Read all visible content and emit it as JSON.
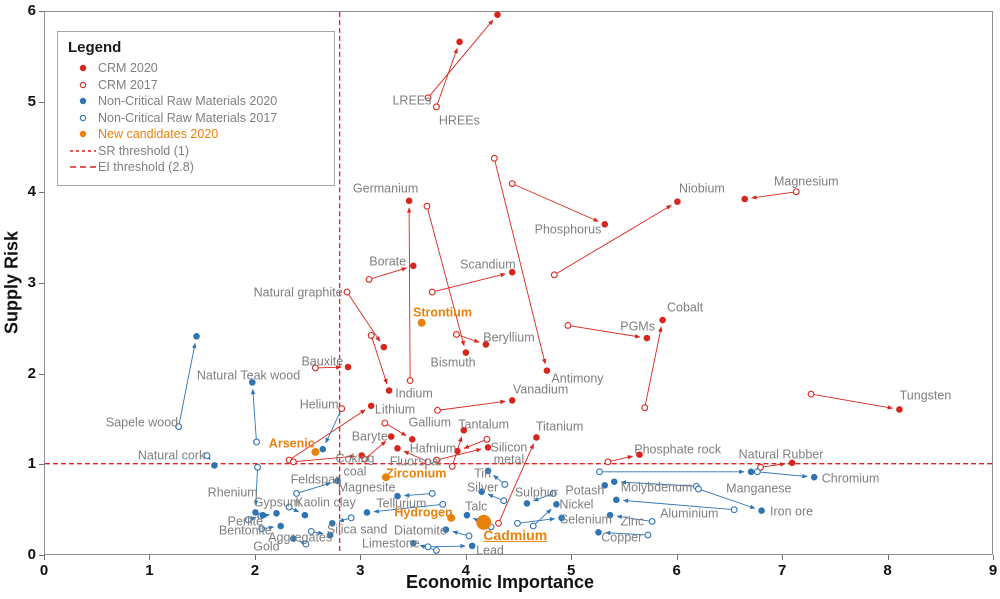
{
  "axes": {
    "x_label": "Economic Importance",
    "y_label": "Supply Risk",
    "x_ticks": [
      "0",
      "1",
      "2",
      "3",
      "4",
      "5",
      "6",
      "7",
      "8",
      "9"
    ],
    "y_ticks": [
      "0",
      "1",
      "2",
      "3",
      "4",
      "5",
      "6"
    ]
  },
  "legend": {
    "title": "Legend",
    "items": [
      {
        "label": "CRM 2020",
        "marker": "dot-filled",
        "color": "#D7261D",
        "text_class": ""
      },
      {
        "label": "CRM 2017",
        "marker": "dot-open",
        "color": "#D7261D",
        "text_class": ""
      },
      {
        "label": "Non-Critical Raw Materials 2020",
        "marker": "dot-filled",
        "color": "#2E74B5",
        "text_class": ""
      },
      {
        "label": "Non-Critical Raw Materials 2017",
        "marker": "dot-open",
        "color": "#2E74B5",
        "text_class": ""
      },
      {
        "label": "New candidates 2020",
        "marker": "dot-filled",
        "color": "#E8820C",
        "text_class": "orange"
      },
      {
        "label": "SR threshold (1)",
        "marker": "dash-short",
        "color": "#E02020",
        "text_class": ""
      },
      {
        "label": "EI threshold (2.8)",
        "marker": "dash-long",
        "color": "#E02020",
        "text_class": ""
      }
    ]
  },
  "colors": {
    "crm": "#D7261D",
    "non_critical": "#2E74B5",
    "new_candidate": "#E8820C",
    "threshold": "#E02020",
    "label_gray": "#7f7f7f"
  },
  "chart_data": {
    "type": "scatter",
    "xlabel": "Economic Importance",
    "ylabel": "Supply Risk",
    "xlim": [
      0,
      9
    ],
    "ylim": [
      0,
      6
    ],
    "grid": false,
    "thresholds": {
      "sr_threshold": 1.0,
      "ei_threshold": 2.8
    },
    "materials": [
      {
        "name": "LREEs",
        "category": "crm",
        "ei_2017": 3.64,
        "sr_2017": 5.05,
        "ei_2020": 4.3,
        "sr_2020": 5.97,
        "label_pos": [
          3.48,
          5.02
        ]
      },
      {
        "name": "HREEs",
        "category": "crm",
        "ei_2017": 3.72,
        "sr_2017": 4.95,
        "ei_2020": 3.94,
        "sr_2020": 5.67,
        "label_pos": [
          3.93,
          4.8
        ]
      },
      {
        "name": "Germanium",
        "category": "crm",
        "ei_2017": 3.47,
        "sr_2017": 1.92,
        "ei_2020": 3.46,
        "sr_2020": 3.91,
        "label_pos": [
          3.23,
          4.05
        ]
      },
      {
        "name": "Borate",
        "category": "crm",
        "ei_2017": 3.08,
        "sr_2017": 3.04,
        "ei_2020": 3.5,
        "sr_2020": 3.19,
        "label_pos": [
          3.25,
          3.24
        ]
      },
      {
        "name": "Scandium",
        "category": "crm",
        "ei_2017": 3.68,
        "sr_2017": 2.9,
        "ei_2020": 4.44,
        "sr_2020": 3.12,
        "label_pos": [
          4.2,
          3.21
        ]
      },
      {
        "name": "Natural graphite",
        "category": "crm",
        "ei_2017": 2.87,
        "sr_2017": 2.9,
        "ei_2020": 3.22,
        "sr_2020": 2.29,
        "label_pos": [
          2.4,
          2.9
        ]
      },
      {
        "name": "Phosphorus",
        "category": "crm",
        "ei_2017": 4.44,
        "sr_2017": 4.1,
        "ei_2020": 5.32,
        "sr_2020": 3.65,
        "label_pos": [
          4.96,
          3.6
        ]
      },
      {
        "name": "Niobium",
        "category": "crm",
        "ei_2017": 4.84,
        "sr_2017": 3.09,
        "ei_2020": 6.01,
        "sr_2020": 3.9,
        "label_pos": [
          6.23,
          4.05
        ]
      },
      {
        "name": "Magnesium",
        "category": "crm",
        "ei_2017": 7.14,
        "sr_2017": 4.01,
        "ei_2020": 6.65,
        "sr_2020": 3.93,
        "label_pos": [
          7.22,
          4.13
        ]
      },
      {
        "name": "Bismuth",
        "category": "crm",
        "ei_2017": 3.63,
        "sr_2017": 3.85,
        "ei_2020": 4.0,
        "sr_2020": 2.23,
        "label_pos": [
          3.87,
          2.13
        ]
      },
      {
        "name": "Beryllium",
        "category": "crm",
        "ei_2017": 3.91,
        "sr_2017": 2.43,
        "ei_2020": 4.19,
        "sr_2020": 2.32,
        "label_pos": [
          4.4,
          2.4
        ]
      },
      {
        "name": "Antimony",
        "category": "crm",
        "ei_2017": 4.27,
        "sr_2017": 4.38,
        "ei_2020": 4.77,
        "sr_2020": 2.03,
        "label_pos": [
          5.05,
          1.95
        ]
      },
      {
        "name": "Bauxite",
        "category": "crm",
        "ei_2017": 2.57,
        "sr_2017": 2.06,
        "ei_2020": 2.88,
        "sr_2020": 2.07,
        "label_pos": [
          2.63,
          2.14
        ]
      },
      {
        "name": "Indium",
        "category": "crm",
        "ei_2017": 3.1,
        "sr_2017": 2.42,
        "ei_2020": 3.27,
        "sr_2020": 1.81,
        "label_pos": [
          3.5,
          1.79
        ]
      },
      {
        "name": "Cobalt",
        "category": "crm",
        "ei_2017": 5.7,
        "sr_2017": 1.62,
        "ei_2020": 5.87,
        "sr_2020": 2.59,
        "label_pos": [
          6.07,
          2.74
        ]
      },
      {
        "name": "PGMs",
        "category": "crm",
        "ei_2017": 4.97,
        "sr_2017": 2.53,
        "ei_2020": 5.72,
        "sr_2020": 2.39,
        "label_pos": [
          5.62,
          2.53
        ]
      },
      {
        "name": "Vanadium",
        "category": "crm",
        "ei_2017": 3.73,
        "sr_2017": 1.59,
        "ei_2020": 4.44,
        "sr_2020": 1.7,
        "label_pos": [
          4.7,
          1.83
        ]
      },
      {
        "name": "Lithium",
        "category": "crm",
        "ei_2017": 2.32,
        "sr_2017": 1.04,
        "ei_2020": 3.1,
        "sr_2020": 1.64,
        "label_pos": [
          3.32,
          1.61
        ]
      },
      {
        "name": "Titanium",
        "category": "crm",
        "ei_2017": 4.31,
        "sr_2017": 0.34,
        "ei_2020": 4.67,
        "sr_2020": 1.29,
        "label_pos": [
          4.88,
          1.42
        ]
      },
      {
        "name": "Tungsten",
        "category": "crm",
        "ei_2017": 7.28,
        "sr_2017": 1.77,
        "ei_2020": 8.12,
        "sr_2020": 1.6,
        "label_pos": [
          8.35,
          1.77
        ]
      },
      {
        "name": "Tantalum",
        "category": "crm",
        "ei_2017": 3.87,
        "sr_2017": 0.97,
        "ei_2020": 3.98,
        "sr_2020": 1.37,
        "label_pos": [
          4.16,
          1.45
        ]
      },
      {
        "name": "Gallium",
        "category": "crm",
        "ei_2017": 3.23,
        "sr_2017": 1.45,
        "ei_2020": 3.49,
        "sr_2020": 1.27,
        "label_pos": [
          3.65,
          1.47
        ]
      },
      {
        "name": "Hafnium",
        "category": "crm",
        "ei_2017": 4.2,
        "sr_2017": 1.27,
        "ei_2020": 3.92,
        "sr_2020": 1.14,
        "label_pos": [
          3.68,
          1.18
        ]
      },
      {
        "name": "Silicon metal",
        "category": "crm",
        "label": "Silicon\nmetal",
        "ei_2017": 3.72,
        "sr_2017": 1.04,
        "ei_2020": 4.21,
        "sr_2020": 1.18,
        "label_pos": [
          4.4,
          1.13
        ]
      },
      {
        "name": "Fluorspar",
        "category": "crm",
        "ei_2017": 3.64,
        "sr_2017": 1.02,
        "ei_2020": 3.35,
        "sr_2020": 1.17,
        "label_pos": [
          3.52,
          1.04
        ]
      },
      {
        "name": "Baryte",
        "category": "crm",
        "ei_2017": 3.04,
        "sr_2017": 1.05,
        "ei_2020": 3.29,
        "sr_2020": 1.3,
        "label_pos": [
          3.08,
          1.31
        ]
      },
      {
        "name": "Coking coal",
        "category": "crm",
        "label": "Coking\ncoal",
        "ei_2017": 2.36,
        "sr_2017": 1.02,
        "ei_2020": 3.01,
        "sr_2020": 1.09,
        "label_pos": [
          2.94,
          1.0
        ]
      },
      {
        "name": "Phosphate rock",
        "category": "crm",
        "ei_2017": 5.35,
        "sr_2017": 1.02,
        "ei_2020": 5.65,
        "sr_2020": 1.1,
        "label_pos": [
          6.0,
          1.17
        ]
      },
      {
        "name": "Natural Rubber",
        "category": "crm",
        "ei_2017": 6.8,
        "sr_2017": 0.96,
        "ei_2020": 7.1,
        "sr_2020": 1.01,
        "label_pos": [
          6.98,
          1.11
        ]
      },
      {
        "name": "Helium",
        "category": "mixed",
        "ei_2017": 2.82,
        "sr_2017": 1.61,
        "ei_2020": 2.64,
        "sr_2020": 1.16,
        "label_pos": [
          2.6,
          1.66
        ]
      },
      {
        "name": "Sapele wood",
        "category": "non",
        "ei_2017": 1.27,
        "sr_2017": 1.41,
        "ei_2020": 1.44,
        "sr_2020": 2.41,
        "label_pos": [
          0.92,
          1.47
        ]
      },
      {
        "name": "Natural cork",
        "category": "non",
        "ei_2017": 1.54,
        "sr_2017": 1.09,
        "ei_2020": 1.61,
        "sr_2020": 0.98,
        "label_pos": [
          1.2,
          1.1
        ]
      },
      {
        "name": "Natural Teak wood",
        "category": "non",
        "ei_2017": 2.01,
        "sr_2017": 1.24,
        "ei_2020": 1.97,
        "sr_2020": 1.9,
        "label_pos": [
          1.93,
          1.98
        ]
      },
      {
        "name": "Rhenium",
        "category": "non",
        "ei_2017": 2.02,
        "sr_2017": 0.96,
        "ei_2020": 2.0,
        "sr_2020": 0.46,
        "label_pos": [
          1.78,
          0.7
        ]
      },
      {
        "name": "Tin",
        "category": "non",
        "ei_2017": 4.37,
        "sr_2017": 0.77,
        "ei_2020": 4.21,
        "sr_2020": 0.92,
        "label_pos": [
          4.15,
          0.9
        ]
      },
      {
        "name": "Silver",
        "category": "non",
        "ei_2017": 4.36,
        "sr_2017": 0.59,
        "ei_2020": 4.15,
        "sr_2020": 0.69,
        "label_pos": [
          4.15,
          0.75
        ]
      },
      {
        "name": "Sulphur",
        "category": "non",
        "ei_2017": 4.83,
        "sr_2017": 0.67,
        "ei_2020": 4.58,
        "sr_2020": 0.56,
        "label_pos": [
          4.66,
          0.69
        ]
      },
      {
        "name": "Potash",
        "category": "non",
        "ei_2017": null,
        "sr_2017": null,
        "ei_2020": 5.32,
        "sr_2020": 0.76,
        "label_pos": [
          5.12,
          0.72
        ]
      },
      {
        "name": "Molybdenum",
        "category": "non",
        "ei_2017": 6.19,
        "sr_2017": 0.75,
        "ei_2020": 5.41,
        "sr_2020": 0.8,
        "label_pos": [
          5.8,
          0.75
        ]
      },
      {
        "name": "Manganese",
        "category": "non",
        "ei_2017": 5.27,
        "sr_2017": 0.91,
        "ei_2020": 6.71,
        "sr_2020": 0.91,
        "label_pos": [
          6.77,
          0.74
        ]
      },
      {
        "name": "Chromium",
        "category": "non",
        "ei_2017": 6.77,
        "sr_2017": 0.91,
        "ei_2020": 7.31,
        "sr_2020": 0.85,
        "label_pos": [
          7.64,
          0.85
        ]
      },
      {
        "name": "Nickel",
        "category": "non",
        "ei_2017": 4.64,
        "sr_2017": 0.31,
        "ei_2020": 4.86,
        "sr_2020": 0.55,
        "label_pos": [
          5.04,
          0.56
        ]
      },
      {
        "name": "Selenium",
        "category": "non",
        "ei_2017": 4.49,
        "sr_2017": 0.34,
        "ei_2020": 4.91,
        "sr_2020": 0.4,
        "label_pos": [
          5.13,
          0.4
        ]
      },
      {
        "name": "Zinc",
        "category": "non",
        "ei_2017": 5.77,
        "sr_2017": 0.36,
        "ei_2020": 5.37,
        "sr_2020": 0.43,
        "label_pos": [
          5.57,
          0.38
        ]
      },
      {
        "name": "Copper",
        "category": "non",
        "ei_2017": 5.73,
        "sr_2017": 0.21,
        "ei_2020": 5.26,
        "sr_2020": 0.24,
        "label_pos": [
          5.47,
          0.2
        ]
      },
      {
        "name": "Iron ore",
        "category": "non",
        "ei_2017": 6.21,
        "sr_2017": 0.72,
        "ei_2020": 6.81,
        "sr_2020": 0.48,
        "label_pos": [
          7.08,
          0.48
        ]
      },
      {
        "name": "Aluminium",
        "category": "non",
        "ei_2017": 6.55,
        "sr_2017": 0.49,
        "ei_2020": 5.43,
        "sr_2020": 0.6,
        "label_pos": [
          6.11,
          0.46
        ]
      },
      {
        "name": "Lead",
        "category": "non",
        "ei_2017": 3.64,
        "sr_2017": 0.08,
        "ei_2020": 4.06,
        "sr_2020": 0.09,
        "label_pos": [
          4.22,
          0.05
        ]
      },
      {
        "name": "Talc",
        "category": "non",
        "ei_2017": 4.24,
        "sr_2017": 0.3,
        "ei_2020": 4.01,
        "sr_2020": 0.43,
        "label_pos": [
          4.09,
          0.54
        ]
      },
      {
        "name": "Limestone",
        "category": "non",
        "ei_2017": 3.72,
        "sr_2017": 0.04,
        "ei_2020": 3.5,
        "sr_2020": 0.12,
        "label_pos": [
          3.28,
          0.13
        ]
      },
      {
        "name": "Diatomite",
        "category": "non",
        "ei_2017": 4.03,
        "sr_2017": 0.2,
        "ei_2020": 3.81,
        "sr_2020": 0.27,
        "label_pos": [
          3.56,
          0.28
        ]
      },
      {
        "name": "Magnesite",
        "category": "non",
        "ei_2017": 3.68,
        "sr_2017": 0.67,
        "ei_2020": 3.35,
        "sr_2020": 0.64,
        "label_pos": [
          3.05,
          0.75
        ]
      },
      {
        "name": "Tellurium",
        "category": "non",
        "ei_2017": 3.78,
        "sr_2017": 0.55,
        "ei_2020": 3.06,
        "sr_2020": 0.46,
        "label_pos": [
          3.38,
          0.57
        ]
      },
      {
        "name": "Feldspar",
        "category": "non",
        "ei_2017": 2.39,
        "sr_2017": 0.67,
        "ei_2020": 2.78,
        "sr_2020": 0.81,
        "label_pos": [
          2.56,
          0.84
        ]
      },
      {
        "name": "Gypsum",
        "category": "non",
        "ei_2017": 2.05,
        "sr_2017": 0.42,
        "ei_2020": 2.2,
        "sr_2020": 0.45,
        "label_pos": [
          2.2,
          0.58
        ]
      },
      {
        "name": "Kaolin clay",
        "category": "non",
        "ei_2017": 2.32,
        "sr_2017": 0.52,
        "ei_2020": 2.47,
        "sr_2020": 0.43,
        "label_pos": [
          2.66,
          0.58
        ]
      },
      {
        "name": "Perlite",
        "category": "non",
        "ei_2017": 1.93,
        "sr_2017": 0.38,
        "ei_2020": 2.07,
        "sr_2020": 0.43,
        "label_pos": [
          1.9,
          0.38
        ]
      },
      {
        "name": "Bentonite",
        "category": "non",
        "ei_2017": 2.06,
        "sr_2017": 0.28,
        "ei_2020": 2.24,
        "sr_2020": 0.31,
        "label_pos": [
          1.9,
          0.28
        ]
      },
      {
        "name": "Aggregates",
        "category": "non",
        "ei_2017": 2.53,
        "sr_2017": 0.25,
        "ei_2020": 2.71,
        "sr_2020": 0.21,
        "label_pos": [
          2.42,
          0.2
        ]
      },
      {
        "name": "Gold",
        "category": "non",
        "ei_2017": 2.48,
        "sr_2017": 0.11,
        "ei_2020": 2.36,
        "sr_2020": 0.17,
        "label_pos": [
          2.1,
          0.1
        ]
      },
      {
        "name": "Silica sand",
        "category": "non",
        "ei_2017": 2.91,
        "sr_2017": 0.4,
        "ei_2020": 2.73,
        "sr_2020": 0.34,
        "label_pos": [
          2.96,
          0.29
        ]
      },
      {
        "name": "Strontium",
        "category": "new",
        "ei_2017": null,
        "sr_2017": null,
        "ei_2020": 3.58,
        "sr_2020": 2.56,
        "label_pos": [
          3.77,
          2.68
        ]
      },
      {
        "name": "Arsenic",
        "category": "new",
        "ei_2017": null,
        "sr_2017": null,
        "ei_2020": 2.57,
        "sr_2020": 1.13,
        "label_pos": [
          2.34,
          1.24
        ]
      },
      {
        "name": "Zirconium",
        "category": "new",
        "ei_2017": null,
        "sr_2017": null,
        "ei_2020": 3.24,
        "sr_2020": 0.85,
        "label_pos": [
          3.52,
          0.9
        ]
      },
      {
        "name": "Hydrogen",
        "category": "new",
        "ei_2017": null,
        "sr_2017": null,
        "ei_2020": 3.86,
        "sr_2020": 0.4,
        "label_pos": [
          3.59,
          0.47
        ]
      },
      {
        "name": "Cadmium",
        "category": "new",
        "big": true,
        "emph": true,
        "ei_2017": null,
        "sr_2017": null,
        "ei_2020": 4.17,
        "sr_2020": 0.35,
        "label_pos": [
          4.46,
          0.23
        ]
      }
    ]
  }
}
